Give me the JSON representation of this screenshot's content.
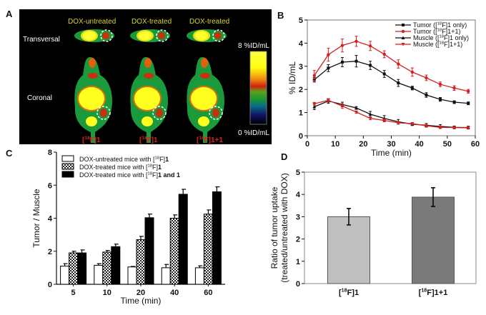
{
  "panel_labels": {
    "a": "A",
    "b": "B",
    "c": "C",
    "d": "D"
  },
  "panel_a": {
    "column_headers": [
      "DOX-untreated",
      "DOX-treated",
      "DOX-treated"
    ],
    "row_labels": [
      "Transversal",
      "Coronal"
    ],
    "colorbar_max": "8 %ID/mL",
    "colorbar_min": "0 %ID/mL",
    "bottom_labels": [
      {
        "pre": "[",
        "sup": "18",
        "post": "F]1"
      },
      {
        "pre": "[",
        "sup": "18",
        "post": "F]1"
      },
      {
        "pre": "[",
        "sup": "18",
        "post": "F]1+1"
      }
    ],
    "colors": {
      "header": "#d8d820",
      "bottom": "#e02020",
      "background": "#000000"
    }
  },
  "chart_data": [
    {
      "id": "B",
      "type": "line",
      "xlabel": "Time (min)",
      "ylabel": "% ID/mL",
      "xlim": [
        0,
        60
      ],
      "ylim": [
        0,
        5
      ],
      "xticks": [
        "0",
        "10",
        "20",
        "30",
        "40",
        "50",
        "60"
      ],
      "yticks": [
        "0",
        "1",
        "2",
        "3",
        "4",
        "5"
      ],
      "legend_position": "top-right",
      "x": [
        2.5,
        7.5,
        12.5,
        17.5,
        22.5,
        27.5,
        32.5,
        37.5,
        42.5,
        47.5,
        52.5,
        57.5
      ],
      "series": [
        {
          "name": {
            "pre": "Tumor ([",
            "sup": "18",
            "post": "F]1 only)"
          },
          "color": "#111111",
          "marker": "square",
          "values": [
            2.42,
            2.92,
            3.18,
            3.22,
            3.04,
            2.67,
            2.28,
            2.06,
            1.76,
            1.57,
            1.45,
            1.4
          ],
          "errors": [
            0.1,
            0.15,
            0.2,
            0.25,
            0.18,
            0.15,
            0.15,
            0.08,
            0.1,
            0.08,
            0.06,
            0.06
          ]
        },
        {
          "name": {
            "pre": "Tumor ([",
            "sup": "18",
            "post": "F]1+1)"
          },
          "color": "#d42020",
          "marker": "circle",
          "values": [
            2.6,
            3.5,
            3.9,
            4.08,
            3.88,
            3.52,
            3.1,
            2.75,
            2.5,
            2.22,
            2.06,
            1.92
          ],
          "errors": [
            0.22,
            0.28,
            0.28,
            0.22,
            0.2,
            0.15,
            0.18,
            0.18,
            0.12,
            0.1,
            0.1,
            0.08
          ]
        },
        {
          "name": {
            "pre": "Muscle ([",
            "sup": "18",
            "post": "F]1 only)"
          },
          "color": "#111111",
          "marker": "triangle-up",
          "values": [
            1.25,
            1.5,
            1.35,
            1.2,
            0.93,
            0.75,
            0.6,
            0.5,
            0.45,
            0.4,
            0.36,
            0.35
          ],
          "errors": [
            0.12,
            0.1,
            0.1,
            0.06,
            0.12,
            0.12,
            0.1,
            0.06,
            0.08,
            0.08,
            0.06,
            0.06
          ]
        },
        {
          "name": {
            "pre": "Muscle ([",
            "sup": "18",
            "post": "F]1+1)"
          },
          "color": "#d42020",
          "marker": "triangle-down",
          "values": [
            1.38,
            1.53,
            1.28,
            1.02,
            0.75,
            0.66,
            0.56,
            0.52,
            0.43,
            0.36,
            0.35,
            0.34
          ],
          "errors": [
            0.06,
            0.06,
            0.1,
            0.05,
            0.06,
            0.06,
            0.05,
            0.05,
            0.05,
            0.05,
            0.04,
            0.04
          ]
        }
      ]
    },
    {
      "id": "C",
      "type": "bar",
      "xlabel": "Time (min)",
      "ylabel": "Tumor / Muscle",
      "ylim": [
        0,
        8
      ],
      "yticks": [
        "0",
        "2",
        "4",
        "6",
        "8"
      ],
      "categories": [
        "5",
        "10",
        "20",
        "40",
        "60"
      ],
      "legend_position": "top-left",
      "series": [
        {
          "name": {
            "pre": "DOX-untreated mice with [",
            "sup": "18",
            "post": "F]",
            "bold": "1"
          },
          "fill": "white",
          "values": [
            1.1,
            1.15,
            1.05,
            1.0,
            1.0
          ],
          "errors": [
            0.15,
            0.1,
            0.03,
            0.2,
            0.12
          ]
        },
        {
          "name": {
            "pre": "DOX-treated mice with [",
            "sup": "18",
            "post": "F]",
            "bold": "1"
          },
          "fill": "checker",
          "values": [
            1.9,
            1.95,
            2.7,
            4.0,
            4.25
          ],
          "errors": [
            0.1,
            0.1,
            0.2,
            0.2,
            0.25
          ]
        },
        {
          "name": {
            "pre": "DOX-treated mice with [",
            "sup": "18",
            "post": "F]",
            "bold": "1 and 1"
          },
          "fill": "black",
          "values": [
            1.9,
            2.28,
            4.03,
            5.45,
            5.6
          ],
          "errors": [
            0.18,
            0.15,
            0.22,
            0.3,
            0.3
          ]
        }
      ]
    },
    {
      "id": "D",
      "type": "bar",
      "ylabel_lines": [
        "Ratio of tumor uptake",
        "(treated/untreated with DOX)"
      ],
      "ylim": [
        0,
        5
      ],
      "yticks": [
        "0",
        "1",
        "2",
        "3",
        "4",
        "5"
      ],
      "categories": [
        {
          "pre": "[",
          "sup": "18",
          "post": "F]1"
        },
        {
          "pre": "[",
          "sup": "18",
          "post": "F]1+1"
        }
      ],
      "values": [
        3.0,
        3.88
      ],
      "errors": [
        0.37,
        0.42
      ],
      "colors": [
        "#c0c0c0",
        "#7a7a7a"
      ]
    }
  ]
}
